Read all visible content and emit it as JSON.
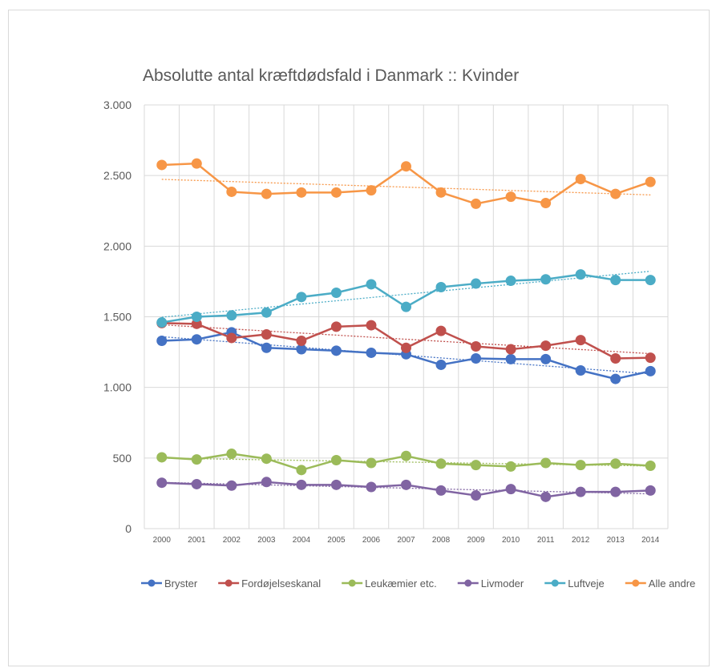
{
  "chart_data": {
    "type": "line",
    "title": "Absolutte antal kræftdødsfald i Danmark :: Kvinder",
    "xlabel": "",
    "ylabel": "",
    "ylim": [
      0,
      3000
    ],
    "yticks": [
      0,
      500,
      1000,
      1500,
      2000,
      2500,
      3000
    ],
    "ytick_labels": [
      "0",
      "500",
      "1.000",
      "1.500",
      "2.000",
      "2.500",
      "3.000"
    ],
    "categories": [
      "2000",
      "2001",
      "2002",
      "2003",
      "2004",
      "2005",
      "2006",
      "2007",
      "2008",
      "2009",
      "2010",
      "2011",
      "2012",
      "2013",
      "2014"
    ],
    "grid": true,
    "legend_position": "bottom",
    "trendlines": "linear, dotted, one per series",
    "series": [
      {
        "name": "Bryster",
        "color": "#4472c4",
        "values": [
          1330,
          1340,
          1390,
          1280,
          1270,
          1260,
          1245,
          1235,
          1160,
          1205,
          1200,
          1200,
          1120,
          1060,
          1115
        ]
      },
      {
        "name": "Fordøjelseskanal",
        "color": "#c0504d",
        "values": [
          1455,
          1450,
          1350,
          1375,
          1330,
          1430,
          1440,
          1280,
          1400,
          1290,
          1270,
          1295,
          1335,
          1205,
          1210
        ]
      },
      {
        "name": "Leukæmier etc.",
        "color": "#9bbb59",
        "values": [
          505,
          490,
          530,
          495,
          415,
          485,
          465,
          515,
          460,
          450,
          440,
          465,
          450,
          460,
          445
        ]
      },
      {
        "name": "Livmoder",
        "color": "#8064a2",
        "values": [
          325,
          315,
          305,
          330,
          310,
          310,
          295,
          310,
          270,
          235,
          280,
          225,
          260,
          260,
          270
        ]
      },
      {
        "name": "Luftveje",
        "color": "#4bacc6",
        "values": [
          1460,
          1500,
          1510,
          1530,
          1640,
          1670,
          1730,
          1570,
          1710,
          1735,
          1755,
          1765,
          1800,
          1760,
          1760
        ]
      },
      {
        "name": "Alle andre",
        "color": "#f79646",
        "values": [
          2575,
          2585,
          2385,
          2370,
          2380,
          2380,
          2395,
          2565,
          2380,
          2300,
          2350,
          2305,
          2475,
          2370,
          2455
        ]
      }
    ]
  }
}
